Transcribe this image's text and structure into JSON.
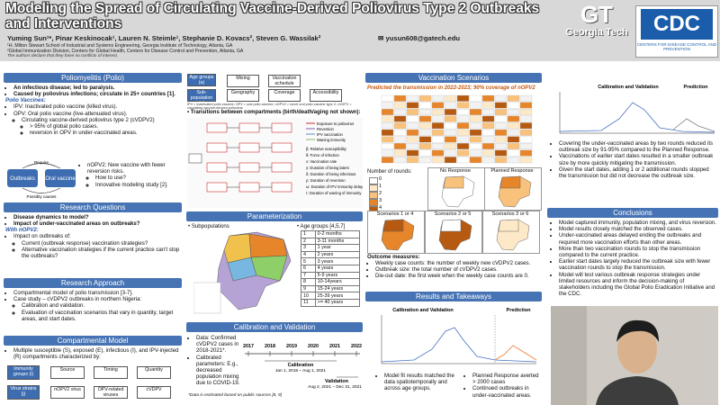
{
  "header": {
    "title": "Modeling the Spread of Circulating Vaccine-Derived Poliovirus Type 2 Outbreaks and Interventions",
    "authors": "Yuming Sun¹*, Pinar Keskinocak¹, Lauren N. Steimle¹, Stephanie D. Kovacs², Steven G. Wassilak²",
    "email": "yusun608@gatech.edu",
    "affiliation_1": "¹H. Milton Stewart School of Industrial and Systems Engineering, Georgia Institute of Technology, Atlanta, GA",
    "affiliation_2": "²Global Immunization Division, Centers for Global Health, Centers for Disease Control and Prevention, Atlanta, GA",
    "note": "The authors declare that they have no conflicts of interest."
  },
  "logos": {
    "gt": "GT",
    "gt_name": "Georgia Tech",
    "cdc": "CDC",
    "cdc_sub": "Centers for Disease Control and Prevention"
  },
  "polio": {
    "heading": "Poliomyelitis (Polio)",
    "items": [
      "An infectious disease; led to paralysis.",
      "Caused by poliovirus infections; circulate in 25+ countries [1]."
    ],
    "vaccines_label": "Polio Vaccines:",
    "vaccines": [
      "IPV: Inactivated polio vaccine (killed virus).",
      {
        "text": "OPV: Oral polio vaccine (live-attenuated virus).",
        "sub": [
          {
            "text": "Circulating vaccine-derived poliovirus type 2 (cVDPV2)",
            "sub": [
              "> 95% of global polio cases.",
              "reversion in OPV in under-vaccinated areas."
            ]
          }
        ]
      }
    ],
    "diagram": {
      "outbreaks": "Outbreaks",
      "oral_vaccine": "Oral vaccine",
      "require": "Require",
      "causes": "Possibly causes"
    },
    "nopv2": [
      {
        "text": "nOPV2: New vaccine with fewer reversion risks.",
        "sub": [
          "How to use?",
          "Innovative modeling study [2]."
        ]
      }
    ]
  },
  "research_questions": {
    "heading": "Research Questions",
    "items": [
      "Disease dynamics to model?",
      "Impact of under-vaccinated areas on outbreaks?"
    ],
    "with_label": "With nOPV2:",
    "items_2": [
      {
        "text": "Impact on outbreaks of:",
        "sub": [
          "Current (outbreak response) vaccination strategies?",
          "Alternative vaccination strategies if the current practice can't stop the outbreaks?"
        ]
      }
    ]
  },
  "research_approach": {
    "heading": "Research Approach",
    "items": [
      "Compartmental model of polio transmission [3-7].",
      {
        "text": "Case study – cVDPV2 outbreaks in northern Nigeria:",
        "sub": [
          "Calibration and validation.",
          "Evaluation of vaccination scenarios that vary in quantity, target areas, and start dates."
        ]
      }
    ]
  },
  "compartmental_model": {
    "heading": "Compartmental Model",
    "items": [
      "Multiple susceptible (S), exposed (E), infectious (I), and IPV-injected (R) compartments characterized by:"
    ],
    "immunity": "Immunity groups (i)",
    "immunity_boxes": [
      "Source",
      "Timing",
      "Quantity"
    ],
    "virus": "Virus strains (j)",
    "virus_boxes": [
      "nOPV2 virus",
      "OPV-related viruses",
      "cVDPV"
    ]
  },
  "model_dims": {
    "age": "Age groups (a)",
    "age_boxes": [
      "Mixing",
      "Vaccination schedule"
    ],
    "sub": "Sub-population (s)",
    "sub_boxes": [
      "Geography",
      "Coverage",
      "Accessibility"
    ],
    "caption": "IPV = inactivated polio vaccine; OPV = oral polio vaccine; nOPV2 = novel oral polio vaccine type 2; cVDPV = circulating vaccine-derived poliovirus",
    "transitions": "Transitions between compartments (birth/death/aging not shown):",
    "arrow_legend": [
      "Exposure to poliovirus",
      "Reversion",
      "IPV vaccination",
      "Waning immunity"
    ],
    "symbols": [
      "β: Relative susceptibility",
      "θ: Force of infection",
      "ν: Vaccination rate",
      "γ: Duration of being latent",
      "δ: Duration of being infectious",
      "ρ: Duration of reversion",
      "ω: Duration of IPV immunity delay",
      "τ: Duration of waning of immunity"
    ]
  },
  "parameterization": {
    "heading": "Parameterization",
    "subpopulations": "Subpopulations",
    "age_title": "Age groups [4,5,7]",
    "age_groups": [
      [
        "1",
        "0-2 months"
      ],
      [
        "2",
        "3-11 months"
      ],
      [
        "3",
        "1 year"
      ],
      [
        "4",
        "2 years"
      ],
      [
        "5",
        "3 years"
      ],
      [
        "6",
        "4 years"
      ],
      [
        "7",
        "5-9 years"
      ],
      [
        "8",
        "10-14years"
      ],
      [
        "9",
        "15-24 years"
      ],
      [
        "10",
        "25-39 years"
      ],
      [
        "11",
        ">= 40 years"
      ]
    ]
  },
  "calibration": {
    "heading": "Calibration and Validation",
    "items": [
      "Data: Confirmed cVDPV2 cases in 2018-2021*.",
      "Calibrated parameters: E.g., decreased population mixing due to COVID-19."
    ],
    "years": [
      "2017",
      "2018",
      "2019",
      "2020",
      "2021",
      "2022"
    ],
    "calibration_label": "Calibration",
    "calibration_dates": "Jan 1, 2018 – Aug 1, 2021",
    "validation_label": "Validation",
    "validation_dates": "Aug 2, 2021 – Dec 31, 2021",
    "footnote": "*Data is estimated based on public sources [8, 9]"
  },
  "vaccination_scenarios": {
    "heading": "Vaccination Scenarios",
    "subtitle": "Predicted the transmission in 2022-2023; 90% coverage of nOPV2",
    "rounds_label": "Number of rounds:",
    "rounds": [
      "0",
      "1",
      "2",
      "3",
      "4"
    ],
    "maps": [
      "No Response",
      "Planned Response",
      "Scenarios 1 or 4",
      "Scenarios 2 or 5",
      "Scenarios 3 or 6"
    ],
    "outcome_label": "Outcome measures:",
    "outcomes": [
      "Weekly case counts: the number of weekly new cVDPV2 cases.",
      "Outbreak size: the total number of cVDPV2 cases.",
      "Die-out date: the first week when the weekly case counts are 0."
    ]
  },
  "results": {
    "heading": "Results and Takeaways",
    "chart_title": "Calibration and Validation",
    "prediction": "Prediction",
    "items": [
      "Model fit results matched the data spatiotemporally and across age groups."
    ],
    "items_2": [
      "Planned Response averted > 2000 cases",
      "Continued outbreaks in under-vaccinated areas."
    ]
  },
  "findings": {
    "chart_title": "Calibration and Validation",
    "prediction": "Prediction",
    "items": [
      "Covering the under-vaccinated areas by two rounds reduced its outbreak size by 91-95% compared to the Planned Response.",
      "Vaccinations of earlier start dates resulted in a smaller outbreak size by more quickly mitigating the transmission.",
      "Given the start dates, adding 1 or 2 additional rounds stopped the transmission but did not decrease the outbreak size."
    ]
  },
  "conclusions": {
    "heading": "Conclusions",
    "items": [
      "Model captured immunity, population mixing, and virus reversion.",
      "Model results closely matched the observed cases.",
      "Under-vaccinated areas delayed ending the outbreaks and required more vaccination efforts than other areas.",
      "More than two vaccination rounds to stop the transmission compared to the current practice.",
      "Earlier start dates largely reduced the outbreak size with fewer vaccination rounds to stop the transmission.",
      "Model will test various outbreak response strategies under limited resources and inform the decision-making of stakeholders including the Global Polio Eradication Initiative and the CDC."
    ]
  }
}
